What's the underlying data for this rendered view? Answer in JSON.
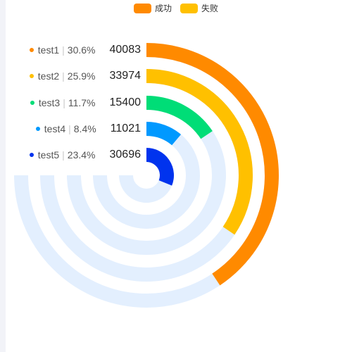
{
  "legend": {
    "items": [
      {
        "label": "成功",
        "color": "#ff8a00"
      },
      {
        "label": "失败",
        "color": "#ffc000"
      }
    ]
  },
  "chart_data": {
    "type": "radial-bar",
    "track_color": "#e3effe",
    "max_value": 74000,
    "series": [
      {
        "name": "test1",
        "percent": "30.6%",
        "value": 40083,
        "color": "#ff8a00"
      },
      {
        "name": "test2",
        "percent": "25.9%",
        "value": 33974,
        "color": "#ffc000"
      },
      {
        "name": "test3",
        "percent": "11.7%",
        "value": 15400,
        "color": "#00dd77"
      },
      {
        "name": "test4",
        "percent": "8.4%",
        "value": 11021,
        "color": "#0099ff"
      },
      {
        "name": "test5",
        "percent": "23.4%",
        "value": 30696,
        "color": "#0033ee"
      }
    ]
  }
}
